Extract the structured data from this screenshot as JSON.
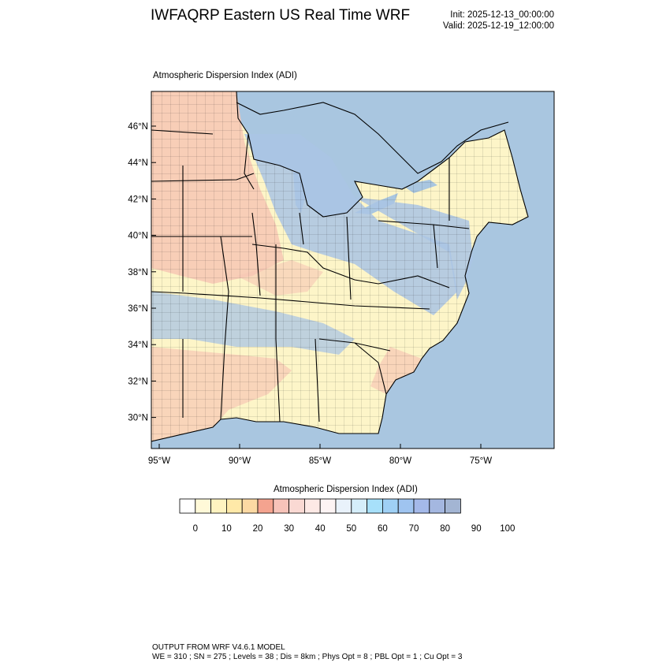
{
  "header": {
    "title": "IWFAQRP Eastern US Real Time WRF",
    "init": "Init: 2025-12-13_00:00:00",
    "valid": "Valid: 2025-12-19_12:00:00"
  },
  "map": {
    "subtitle": "Atmospheric Dispersion Index   (ADI)",
    "lat_ticks": [
      "46°N",
      "44°N",
      "42°N",
      "40°N",
      "38°N",
      "36°N",
      "34°N",
      "32°N",
      "30°N"
    ],
    "lon_ticks": [
      "95°W",
      "90°W",
      "85°W",
      "80°W",
      "75°W"
    ],
    "colors": {
      "water": "#a9c6e0",
      "land_low": "#fdf5c8",
      "land_mid": "#f7c7b4",
      "land_high": "#aac4e4",
      "border": "#000000"
    }
  },
  "colorbar": {
    "title": "Atmospheric Dispersion Index  (ADI)",
    "labels": [
      "0",
      "10",
      "20",
      "30",
      "40",
      "50",
      "60",
      "70",
      "80",
      "90",
      "100"
    ],
    "colors": [
      "#ffffff",
      "#fff9d8",
      "#fff3c0",
      "#ffe9a8",
      "#fcd9a3",
      "#f4a38f",
      "#f7c3b9",
      "#fad9d3",
      "#fde9e5",
      "#fdf4f4",
      "#e9f2fb",
      "#d5eefa",
      "#a7e0fa",
      "#9fd0f5",
      "#9fc4f0",
      "#a4b9e9",
      "#a4b7e0",
      "#a3b5d3"
    ]
  },
  "footer": {
    "line1": "OUTPUT FROM WRF V4.6.1 MODEL",
    "line2": "WE = 310 ; SN = 275 ; Levels = 38 ; Dis = 8km ; Phys Opt = 8 ; PBL Opt = 1 ; Cu Opt = 3"
  }
}
